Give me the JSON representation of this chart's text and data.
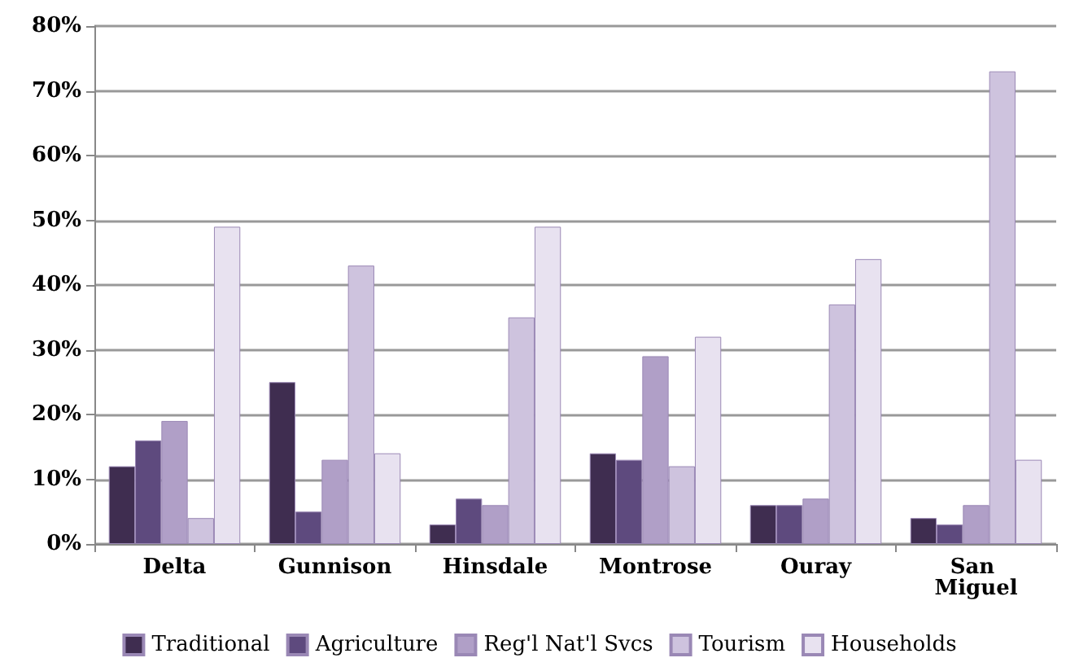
{
  "chart_data": {
    "type": "bar",
    "categories": [
      "Delta",
      "Gunnison",
      "Hinsdale",
      "Montrose",
      "Ouray",
      "San Miguel"
    ],
    "series": [
      {
        "name": "Traditional",
        "color": "#3f2d50",
        "values": [
          12,
          25,
          3,
          14,
          6,
          4
        ]
      },
      {
        "name": "Agriculture",
        "color": "#5e4a7e",
        "values": [
          16,
          5,
          7,
          13,
          6,
          3
        ]
      },
      {
        "name": "Reg'l Nat'l Svcs",
        "color": "#b09fc7",
        "values": [
          19,
          13,
          6,
          29,
          7,
          6
        ]
      },
      {
        "name": "Tourism",
        "color": "#cec3de",
        "values": [
          4,
          43,
          35,
          12,
          37,
          73
        ]
      },
      {
        "name": "Households",
        "color": "#e8e2f0",
        "values": [
          49,
          14,
          49,
          32,
          44,
          13
        ]
      }
    ],
    "ylim": [
      0,
      80
    ],
    "yticks": [
      {
        "value": 0,
        "label": "0%"
      },
      {
        "value": 10,
        "label": "10%"
      },
      {
        "value": 20,
        "label": "20%"
      },
      {
        "value": 30,
        "label": "30%"
      },
      {
        "value": 40,
        "label": "40%"
      },
      {
        "value": 50,
        "label": "50%"
      },
      {
        "value": 60,
        "label": "60%"
      },
      {
        "value": 70,
        "label": "70%"
      },
      {
        "value": 80,
        "label": "80%"
      }
    ],
    "grid": true,
    "legend": "bottom"
  }
}
